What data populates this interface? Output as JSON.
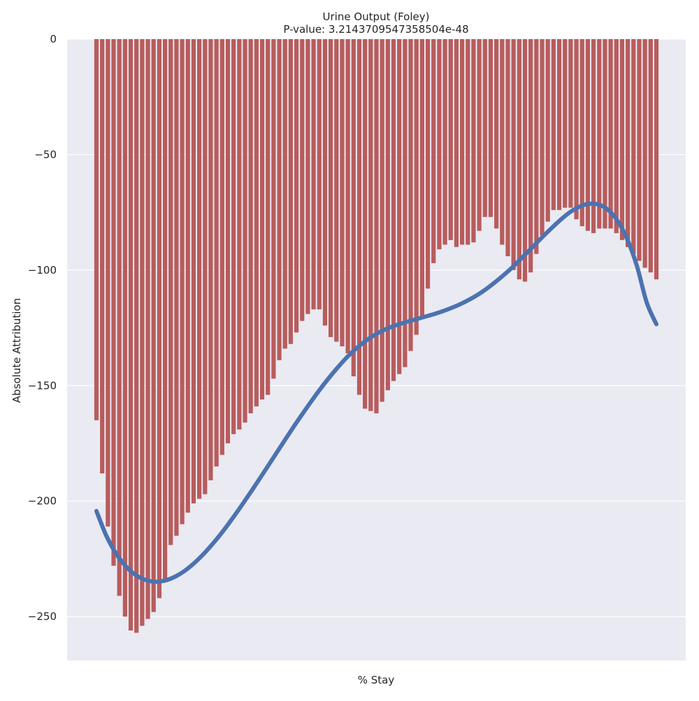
{
  "chart_data": {
    "type": "bar",
    "title": "Urine Output (Foley)",
    "subtitle": "P-value: 3.2143709547358504e-48",
    "xlabel": "% Stay",
    "ylabel": "Absolute Attribution",
    "ylim": [
      -269,
      0
    ],
    "yticks": [
      0,
      -50,
      -100,
      -150,
      -200,
      -250
    ],
    "ytick_labels": [
      "0",
      "−50",
      "−100",
      "−150",
      "−200",
      "−250"
    ],
    "grid": true,
    "bar_color": "#b85c5c",
    "trend_color": "#4c72b0",
    "background": "#eaeaf2",
    "values": [
      -165,
      -188,
      -211,
      -228,
      -241,
      -250,
      -256,
      -257,
      -254,
      -251,
      -248,
      -242,
      -235,
      -219,
      -215,
      -210,
      -205,
      -201,
      -199,
      -197,
      -191,
      -185,
      -180,
      -175,
      -171,
      -169,
      -166,
      -162,
      -159,
      -156,
      -154,
      -147,
      -139,
      -134,
      -132,
      -127,
      -122,
      -119,
      -117,
      -117,
      -124,
      -129,
      -131,
      -133,
      -136,
      -146,
      -154,
      -160,
      -161,
      -162,
      -157,
      -152,
      -148,
      -145,
      -142,
      -135,
      -128,
      -121,
      -108,
      -97,
      -91,
      -89,
      -87,
      -90,
      -89,
      -89,
      -88,
      -83,
      -77,
      -77,
      -82,
      -89,
      -94,
      -100,
      -104,
      -105,
      -101,
      -93,
      -85,
      -79,
      -74,
      -74,
      -73,
      -73,
      -78,
      -81,
      -83,
      -84,
      -82,
      -82,
      -82,
      -84,
      -87,
      -90,
      -93,
      -96,
      -99,
      -101,
      -104
    ],
    "trend": [
      -204.3,
      -214.8,
      -222.5,
      -228.0,
      -231.8,
      -234.0,
      -234.9,
      -234.5,
      -233.0,
      -230.6,
      -227.3,
      -223.3,
      -218.7,
      -213.6,
      -208.0,
      -202.1,
      -196.0,
      -189.7,
      -183.3,
      -176.9,
      -170.5,
      -164.3,
      -158.3,
      -152.5,
      -147.1,
      -142.1,
      -137.5,
      -133.6,
      -130.3,
      -127.6,
      -125.5,
      -123.9,
      -122.6,
      -121.4,
      -120.2,
      -119.0,
      -117.6,
      -116.0,
      -114.1,
      -111.9,
      -109.3,
      -106.2,
      -102.8,
      -99.1,
      -95.0,
      -90.8,
      -86.5,
      -82.4,
      -78.5,
      -75.1,
      -72.6,
      -71.3,
      -71.6,
      -73.9,
      -78.8,
      -86.8,
      -98.4,
      -114.0,
      -123.4
    ]
  }
}
